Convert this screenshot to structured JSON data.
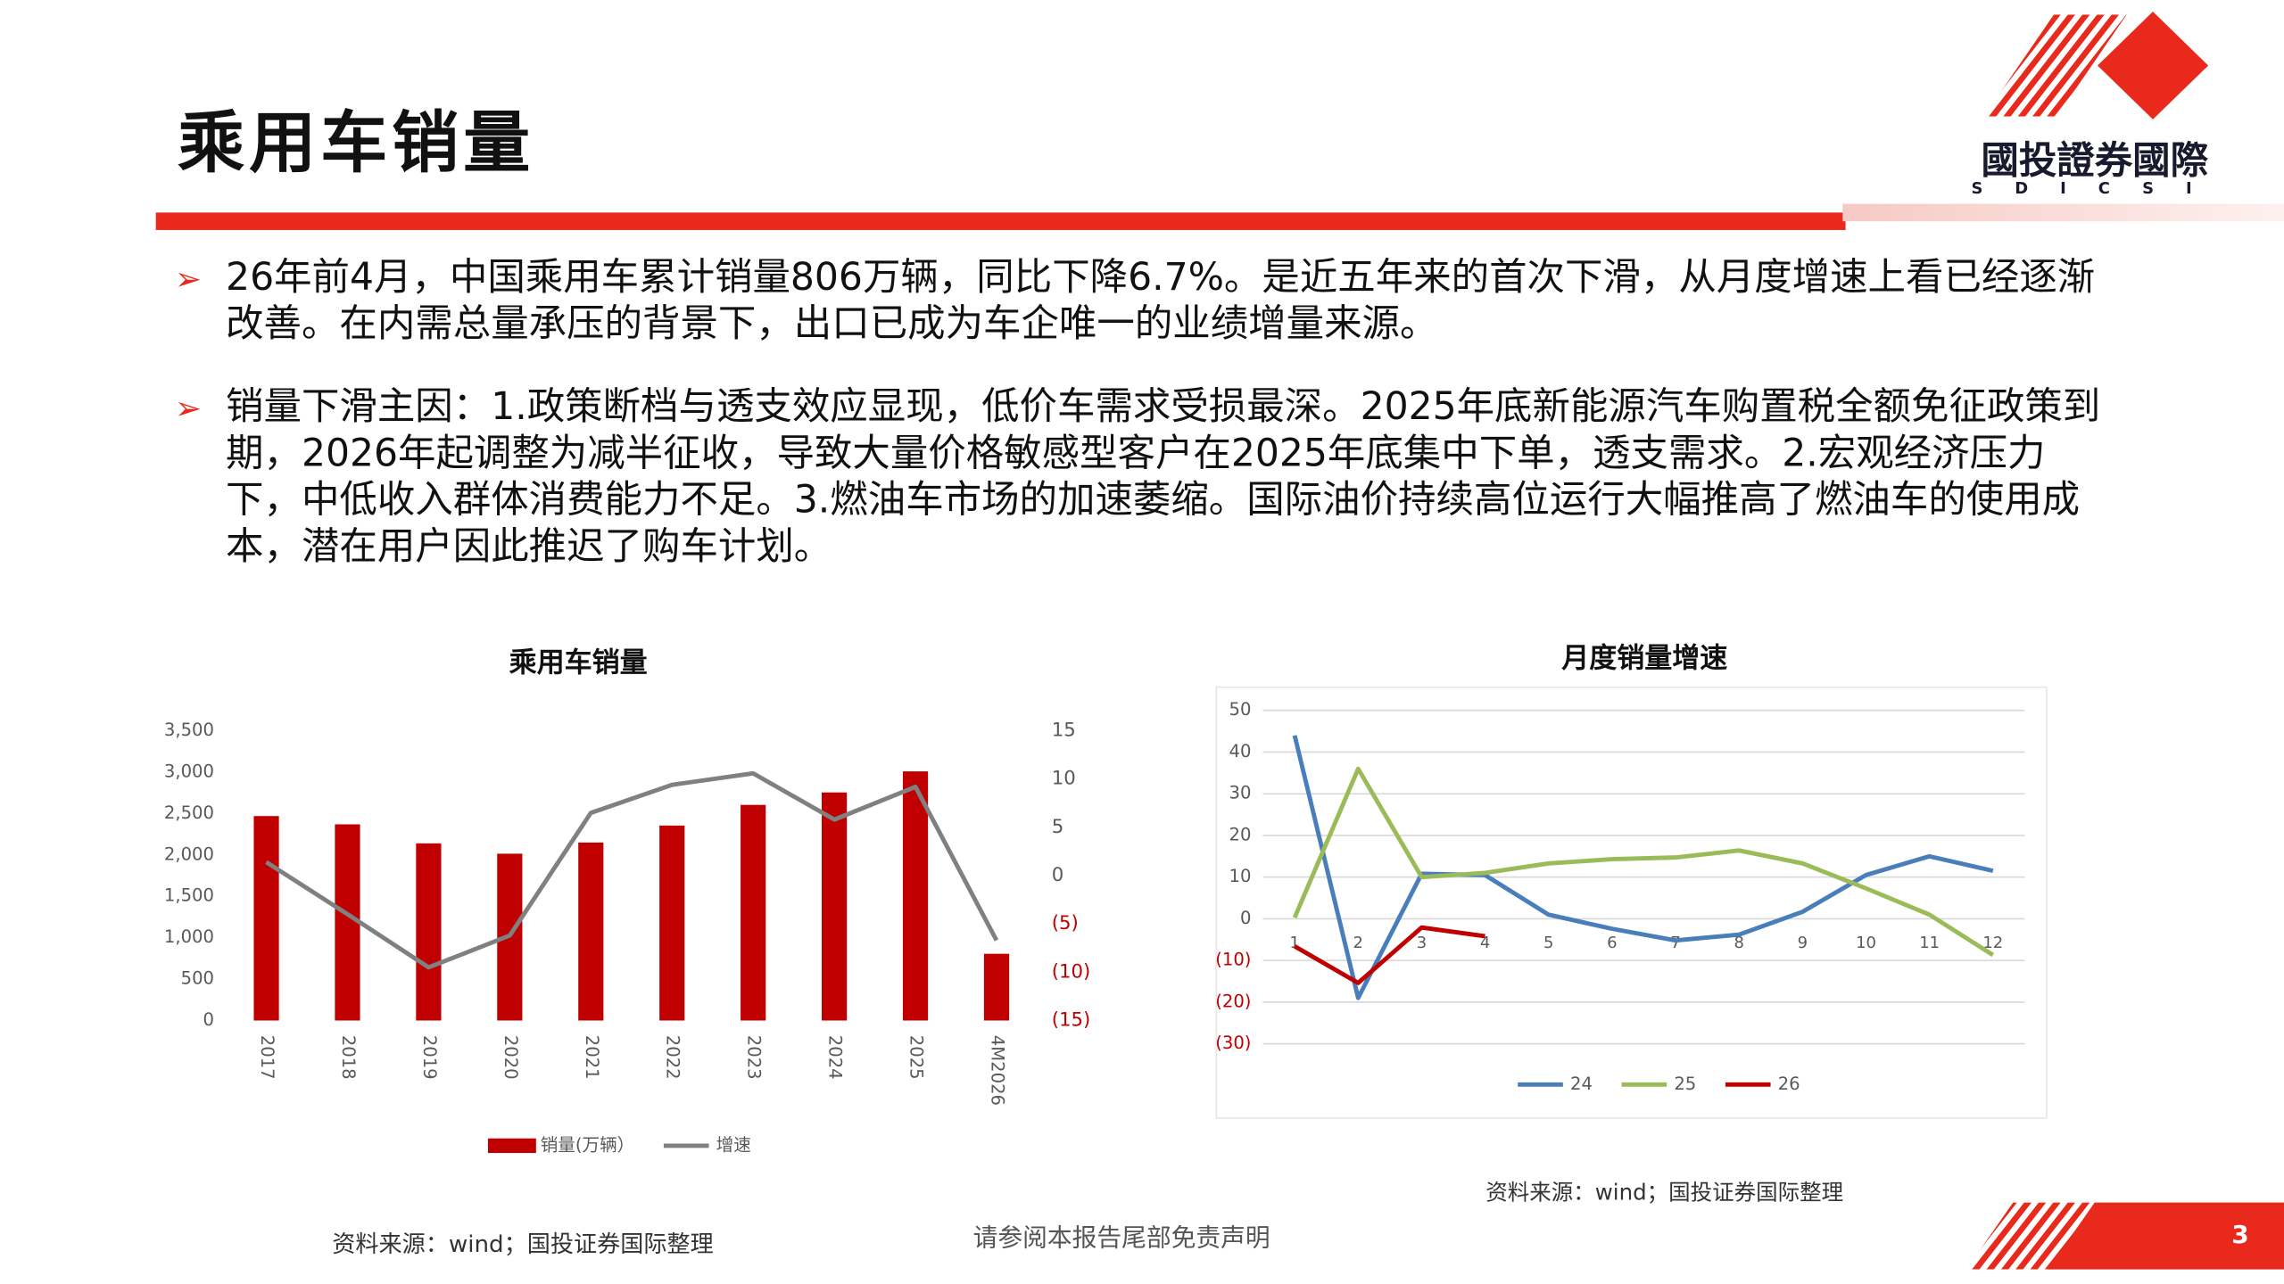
{
  "header": {
    "title": "乘用车销量",
    "logo_text": "國投證券國際",
    "logo_sub": "SDICSI"
  },
  "bullets": [
    "26年前4月，中国乘用车累计销量806万辆，同比下降6.7%。是近五年来的首次下滑，从月度增速上看已经逐渐改善。在内需总量承压的背景下，出口已成为车企唯一的业绩增量来源。",
    "销量下滑主因：1.政策断档与透支效应显现，低价车需求受损最深。2025年底新能源汽车购置税全额免征政策到期，2026年起调整为减半征收，导致大量价格敏感型客户在2025年底集中下单，透支需求。2.宏观经济压力下，中低收入群体消费能力不足。3.燃油车市场的加速萎缩。国际油价持续高位运行大幅推高了燃油车的使用成本，潜在用户因此推迟了购车计划。"
  ],
  "chart_data": [
    {
      "type": "bar",
      "title": "乘用车销量",
      "categories": [
        "2017",
        "2018",
        "2019",
        "2020",
        "2021",
        "2022",
        "2023",
        "2024",
        "2025",
        "4M2026"
      ],
      "series": [
        {
          "name": "销量(万辆）",
          "color": "#c00000",
          "values": [
            2470,
            2370,
            2140,
            2015,
            2150,
            2355,
            2605,
            2755,
            3010,
            806
          ]
        },
        {
          "name": "增速",
          "color": "#808080",
          "type": "line",
          "axis": "y2",
          "values": [
            1.4,
            -4.0,
            -9.5,
            -6.2,
            6.5,
            9.4,
            10.6,
            5.8,
            9.2,
            -6.7
          ]
        }
      ],
      "ylim": [
        0,
        3500
      ],
      "yticks": [
        0,
        500,
        {
          "value": 1000,
          "label": "1,000"
        },
        {
          "value": 1500,
          "label": "1,500"
        },
        {
          "value": 2000,
          "label": "2,000"
        },
        {
          "value": 2500,
          "label": "2,500"
        },
        {
          "value": 3000,
          "label": "3,000"
        },
        {
          "value": 3500,
          "label": "3,500"
        }
      ],
      "y2lim": [
        -15,
        15
      ],
      "y2ticks": [
        {
          "value": -15,
          "label": "(15)"
        },
        {
          "value": -10,
          "label": "(10)"
        },
        {
          "value": -5,
          "label": "(5)"
        },
        0,
        5,
        10,
        15
      ],
      "negative_tick_color": "#c00000",
      "grid": false
    },
    {
      "type": "line",
      "title": "月度销量增速",
      "categories": [
        "1",
        "2",
        "3",
        "4",
        "5",
        "6",
        "7",
        "8",
        "9",
        "10",
        "11",
        "12"
      ],
      "series": [
        {
          "name": "24",
          "color": "#4a7ebb",
          "values": [
            44,
            -19,
            10.8,
            10.5,
            1,
            -2.4,
            -5.2,
            -3.8,
            1.7,
            10.5,
            15,
            11.5
          ]
        },
        {
          "name": "25",
          "color": "#9bbb59",
          "values": [
            0.3,
            36,
            10,
            11,
            13.3,
            14.3,
            14.7,
            16.4,
            13.3,
            7.3,
            1,
            -8.7
          ]
        },
        {
          "name": "26",
          "color": "#c00000",
          "values": [
            -6.6,
            -15.4,
            -2.1,
            -4.2,
            null,
            null,
            null,
            null,
            null,
            null,
            null,
            null
          ]
        }
      ],
      "ylim": [
        -30,
        50
      ],
      "yticks": [
        {
          "value": -30,
          "label": "(30)"
        },
        {
          "value": -20,
          "label": "(20)"
        },
        {
          "value": -10,
          "label": "(10)"
        },
        0,
        10,
        20,
        30,
        40,
        50
      ],
      "negative_tick_color": "#c00000",
      "grid": true
    }
  ],
  "sources": [
    "资料来源：wind；国投证券国际整理",
    "资料来源：wind；国投证券国际整理"
  ],
  "footer": {
    "disclaimer": "请参阅本报告尾部免责声明",
    "page": 3
  }
}
